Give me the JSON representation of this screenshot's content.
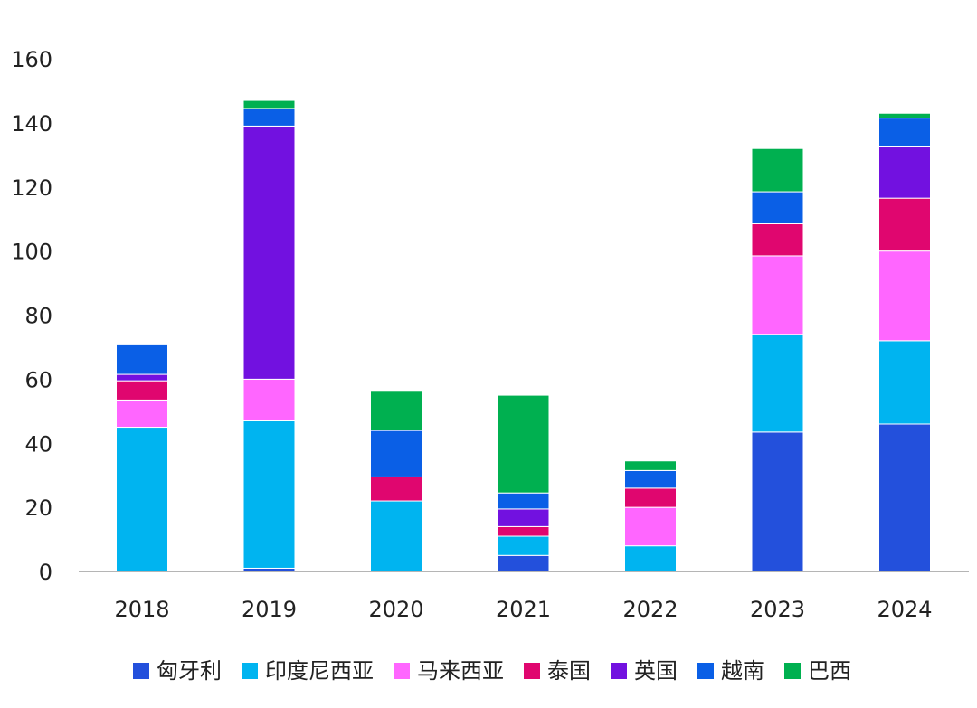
{
  "chart_data": {
    "type": "bar",
    "stacked": true,
    "categories": [
      "2018",
      "2019",
      "2020",
      "2021",
      "2022",
      "2023",
      "2024"
    ],
    "ylim": [
      0,
      160
    ],
    "yticks": [
      0,
      20,
      40,
      60,
      80,
      100,
      120,
      140,
      160
    ],
    "grid": false,
    "legend_position": "bottom",
    "series": [
      {
        "name": "匈牙利",
        "color": "#2350DC",
        "values": [
          0,
          1,
          0,
          5,
          0,
          43.5,
          46
        ]
      },
      {
        "name": "印度尼西亚",
        "color": "#00B4F0",
        "values": [
          45,
          46,
          22,
          6,
          8,
          30.5,
          26
        ]
      },
      {
        "name": "马来西亚",
        "color": "#FF66FF",
        "values": [
          8.5,
          13,
          0,
          0,
          12,
          24.5,
          28
        ]
      },
      {
        "name": "泰国",
        "color": "#E0066F",
        "values": [
          6,
          0,
          7.5,
          3,
          6,
          10,
          16.5
        ]
      },
      {
        "name": "英国",
        "color": "#7211E0",
        "values": [
          2,
          79,
          0,
          5.5,
          0,
          0,
          16
        ]
      },
      {
        "name": "越南",
        "color": "#0A5FE6",
        "values": [
          9.5,
          5.5,
          14.5,
          5,
          5.5,
          10,
          9
        ]
      },
      {
        "name": "巴西",
        "color": "#00B050",
        "values": [
          0,
          2.5,
          12.5,
          30.5,
          3,
          13.5,
          1.5
        ]
      }
    ]
  }
}
